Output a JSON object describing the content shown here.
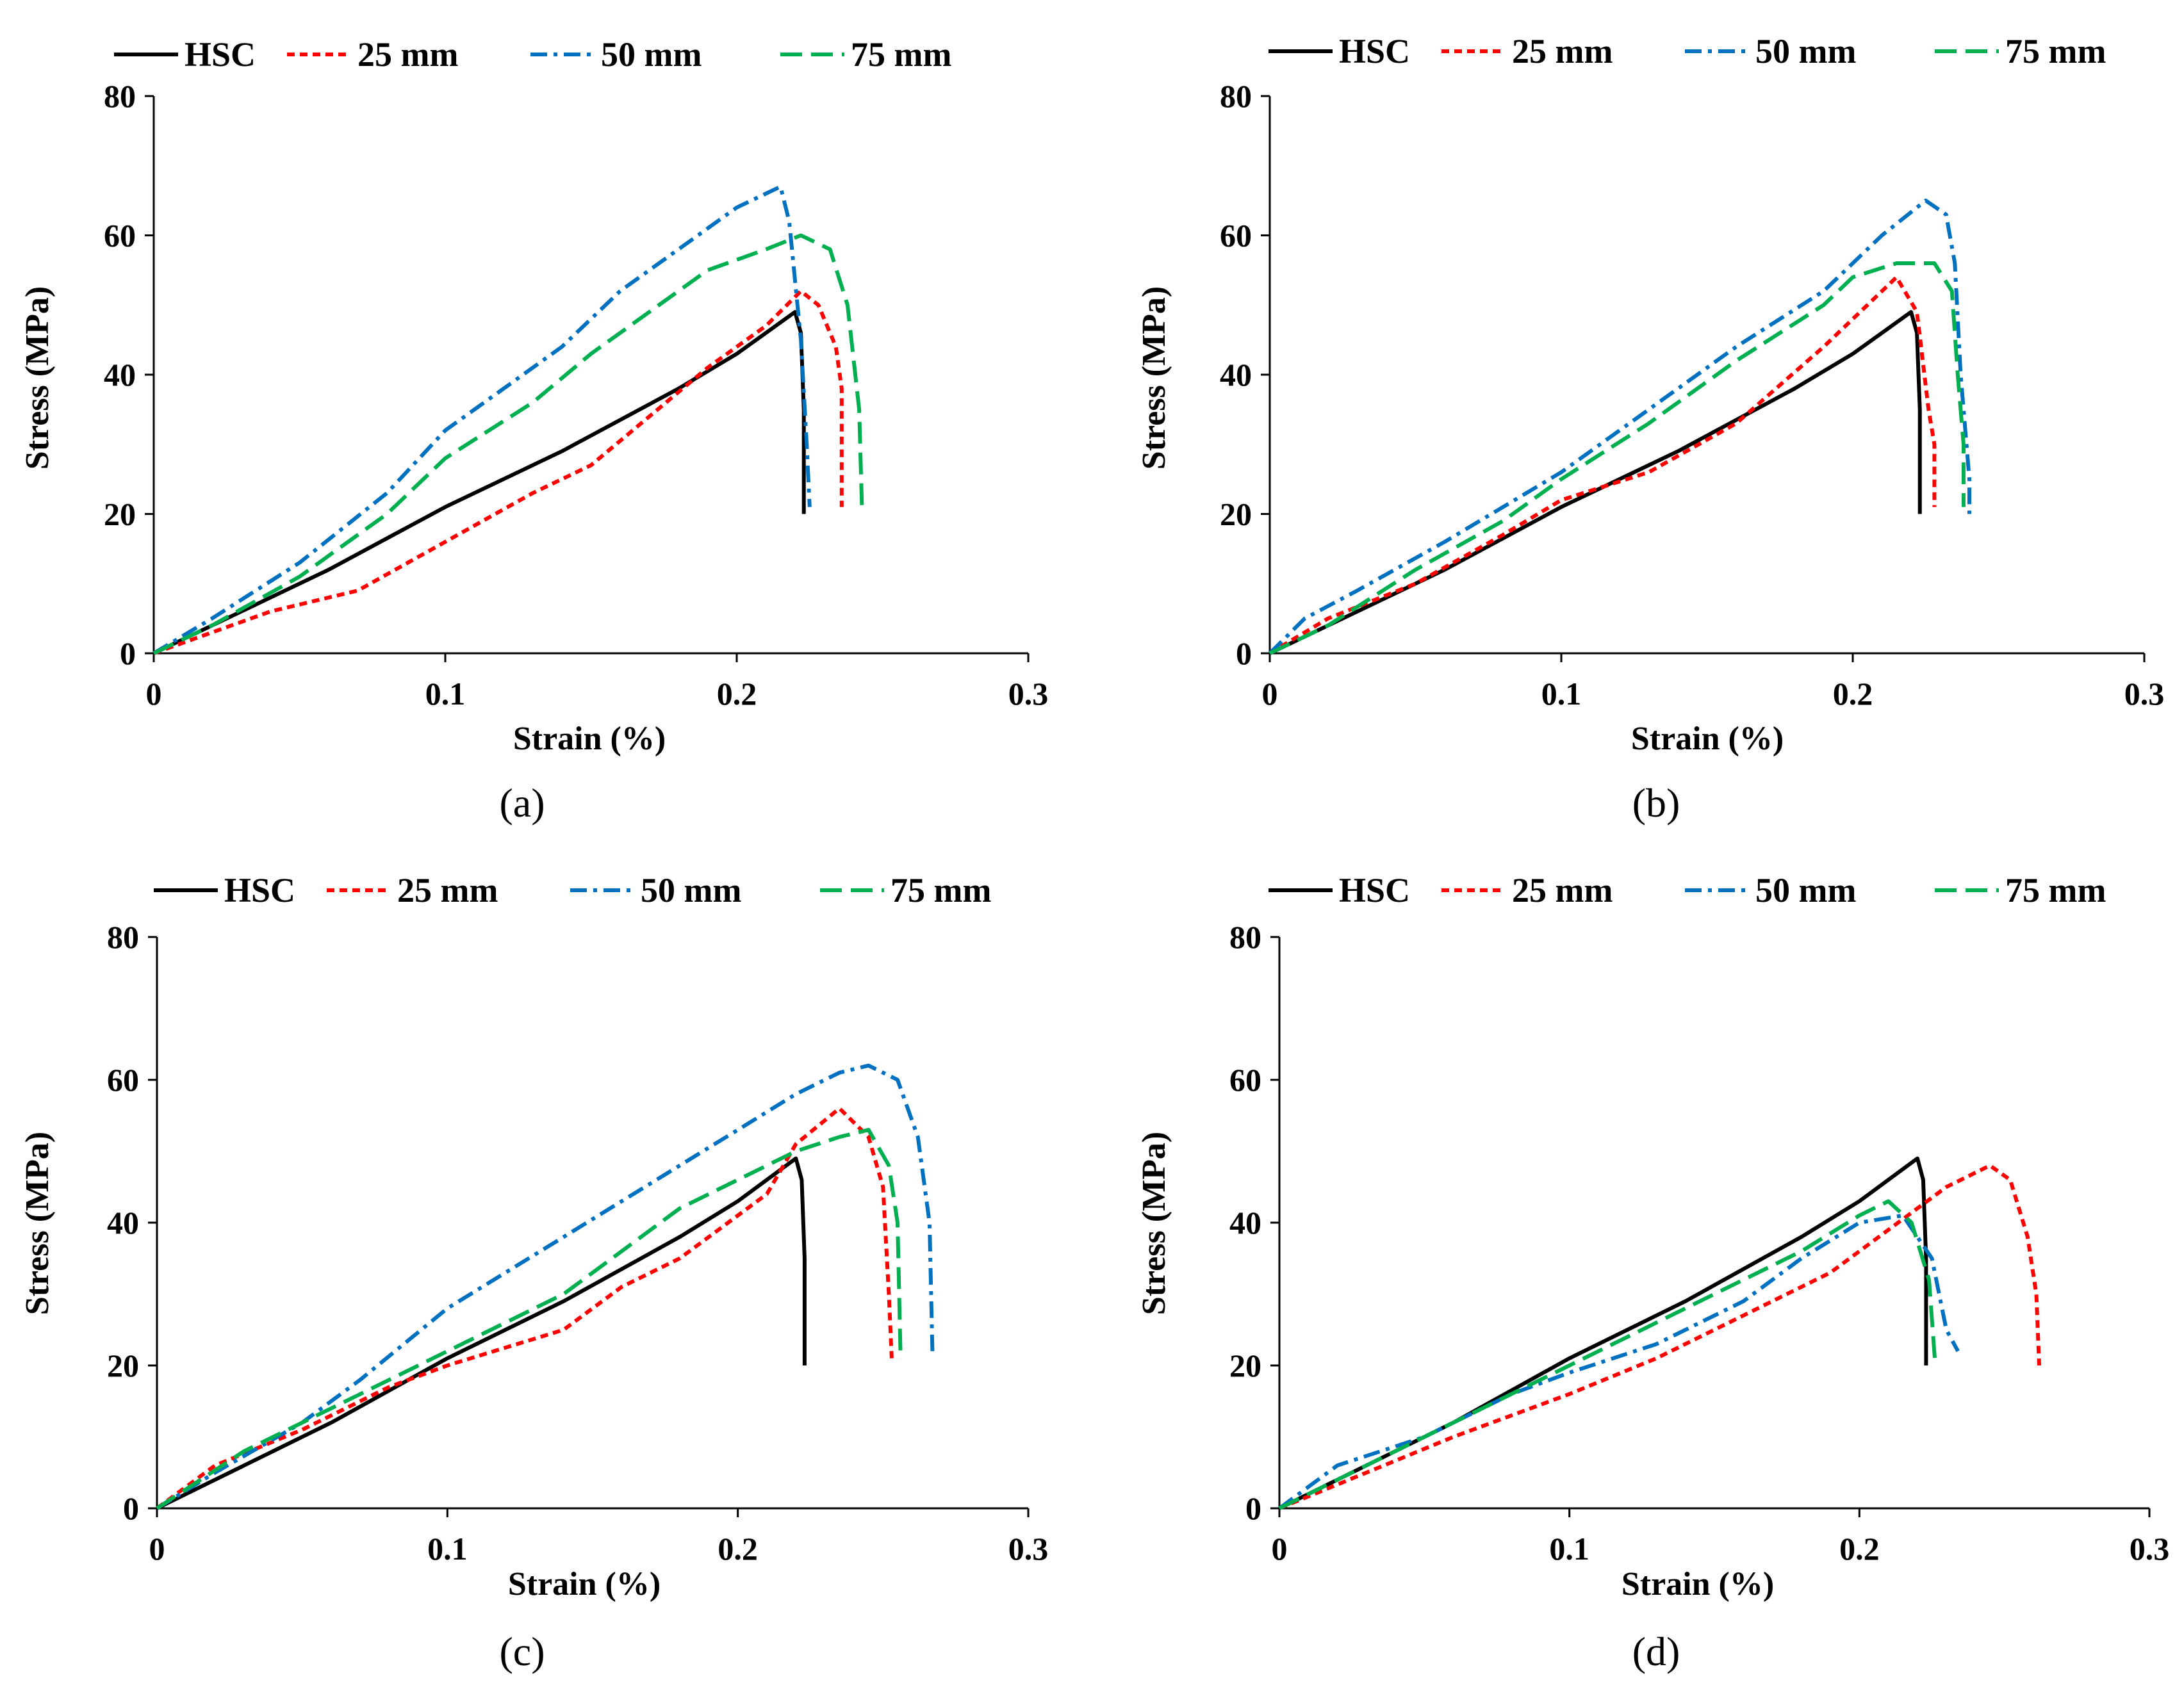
{
  "figure": {
    "yticks": [
      "0",
      "20",
      "40",
      "60",
      "80"
    ],
    "xticks": [
      "0",
      "0.1",
      "0.2",
      "0.3"
    ]
  },
  "series_styles": [
    {
      "name": "HSC",
      "color": "#000000",
      "dash": "solid"
    },
    {
      "name": "25 mm",
      "color": "#ff0000",
      "dash": "dotted"
    },
    {
      "name": "50 mm",
      "color": "#0070c0",
      "dash": "dash-dot"
    },
    {
      "name": "75 mm",
      "color": "#00b050",
      "dash": "dashed"
    }
  ],
  "chart_data": [
    {
      "type": "line",
      "panel_label": "(a)",
      "xlabel": "Strain (%)",
      "ylabel": "Stress (MPa)",
      "xlim": [
        0,
        0.3
      ],
      "ylim": [
        0,
        80
      ],
      "legend": "top",
      "series": [
        {
          "name": "HSC",
          "x": [
            0,
            0.01,
            0.03,
            0.06,
            0.1,
            0.14,
            0.18,
            0.2,
            0.21,
            0.22,
            0.222,
            0.223,
            0.223
          ],
          "y": [
            0,
            2,
            6,
            12,
            21,
            29,
            38,
            43,
            46,
            49,
            46,
            35,
            20
          ]
        },
        {
          "name": "25 mm",
          "x": [
            0,
            0.02,
            0.04,
            0.07,
            0.1,
            0.13,
            0.15,
            0.17,
            0.19,
            0.21,
            0.222,
            0.228,
            0.234,
            0.236,
            0.236
          ],
          "y": [
            0,
            3,
            6,
            9,
            16,
            23,
            27,
            34,
            41,
            47,
            52,
            50,
            44,
            38,
            21
          ]
        },
        {
          "name": "50 mm",
          "x": [
            0,
            0.02,
            0.05,
            0.08,
            0.1,
            0.12,
            0.14,
            0.16,
            0.18,
            0.2,
            0.215,
            0.218,
            0.222,
            0.224,
            0.225
          ],
          "y": [
            0,
            5,
            13,
            23,
            32,
            38,
            44,
            52,
            58,
            64,
            67,
            62,
            45,
            30,
            21
          ]
        },
        {
          "name": "75 mm",
          "x": [
            0,
            0.02,
            0.05,
            0.08,
            0.1,
            0.13,
            0.15,
            0.17,
            0.19,
            0.21,
            0.222,
            0.232,
            0.238,
            0.242,
            0.243
          ],
          "y": [
            0,
            4,
            11,
            20,
            28,
            36,
            43,
            49,
            55,
            58,
            60,
            58,
            50,
            35,
            20
          ]
        }
      ]
    },
    {
      "type": "line",
      "panel_label": "(b)",
      "xlabel": "Strain (%)",
      "ylabel": "Stress (MPa)",
      "xlim": [
        0,
        0.3
      ],
      "ylim": [
        0,
        80
      ],
      "legend": "top",
      "series": [
        {
          "name": "HSC",
          "x": [
            0,
            0.01,
            0.03,
            0.06,
            0.1,
            0.14,
            0.18,
            0.2,
            0.21,
            0.22,
            0.222,
            0.223,
            0.223
          ],
          "y": [
            0,
            2,
            6,
            12,
            21,
            29,
            38,
            43,
            46,
            49,
            46,
            35,
            20
          ]
        },
        {
          "name": "25 mm",
          "x": [
            0,
            0.02,
            0.05,
            0.08,
            0.1,
            0.13,
            0.16,
            0.19,
            0.205,
            0.215,
            0.222,
            0.226,
            0.228,
            0.228
          ],
          "y": [
            0,
            5,
            10,
            17,
            22,
            26,
            33,
            44,
            50,
            54,
            49,
            35,
            30,
            21
          ]
        },
        {
          "name": "50 mm",
          "x": [
            0,
            0.012,
            0.03,
            0.06,
            0.1,
            0.13,
            0.16,
            0.19,
            0.21,
            0.225,
            0.232,
            0.235,
            0.237,
            0.24,
            0.24
          ],
          "y": [
            0,
            5,
            9,
            16,
            26,
            35,
            44,
            52,
            60,
            65,
            63,
            56,
            40,
            25,
            20
          ]
        },
        {
          "name": "75 mm",
          "x": [
            0,
            0.02,
            0.05,
            0.08,
            0.1,
            0.13,
            0.16,
            0.19,
            0.2,
            0.215,
            0.228,
            0.234,
            0.236,
            0.238,
            0.238
          ],
          "y": [
            0,
            4,
            12,
            19,
            25,
            33,
            42,
            50,
            54,
            56,
            56,
            52,
            40,
            30,
            21
          ]
        }
      ]
    },
    {
      "type": "line",
      "panel_label": "(c)",
      "xlabel": "Strain (%)",
      "ylabel": "Stress (MPa)",
      "xlim": [
        0,
        0.3
      ],
      "ylim": [
        0,
        80
      ],
      "legend": "top",
      "series": [
        {
          "name": "HSC",
          "x": [
            0,
            0.01,
            0.03,
            0.06,
            0.1,
            0.14,
            0.18,
            0.2,
            0.21,
            0.22,
            0.222,
            0.223,
            0.223
          ],
          "y": [
            0,
            2,
            6,
            12,
            21,
            29,
            38,
            43,
            46,
            49,
            46,
            35,
            20
          ]
        },
        {
          "name": "25 mm",
          "x": [
            0,
            0.02,
            0.05,
            0.08,
            0.1,
            0.14,
            0.16,
            0.18,
            0.2,
            0.21,
            0.22,
            0.235,
            0.245,
            0.25,
            0.252,
            0.253
          ],
          "y": [
            0,
            6,
            11,
            17,
            20,
            25,
            31,
            35,
            41,
            44,
            51,
            56,
            52,
            45,
            30,
            21
          ]
        },
        {
          "name": "50 mm",
          "x": [
            0,
            0.02,
            0.05,
            0.07,
            0.1,
            0.14,
            0.18,
            0.2,
            0.22,
            0.235,
            0.245,
            0.255,
            0.262,
            0.266,
            0.267
          ],
          "y": [
            0,
            5,
            12,
            18,
            28,
            38,
            48,
            53,
            58,
            61,
            62,
            60,
            52,
            40,
            22
          ]
        },
        {
          "name": "75 mm",
          "x": [
            0,
            0.03,
            0.06,
            0.08,
            0.1,
            0.14,
            0.18,
            0.2,
            0.22,
            0.235,
            0.245,
            0.252,
            0.255,
            0.256
          ],
          "y": [
            0,
            8,
            14,
            18,
            22,
            30,
            42,
            46,
            50,
            52,
            53,
            48,
            40,
            22
          ]
        }
      ]
    },
    {
      "type": "line",
      "panel_label": "(d)",
      "xlabel": "Strain (%)",
      "ylabel": "Stress (MPa)",
      "xlim": [
        0,
        0.3
      ],
      "ylim": [
        0,
        80
      ],
      "legend": "top",
      "series": [
        {
          "name": "HSC",
          "x": [
            0,
            0.01,
            0.03,
            0.06,
            0.1,
            0.14,
            0.18,
            0.2,
            0.21,
            0.22,
            0.222,
            0.223,
            0.223
          ],
          "y": [
            0,
            2,
            6,
            12,
            21,
            29,
            38,
            43,
            46,
            49,
            46,
            35,
            20
          ]
        },
        {
          "name": "25 mm",
          "x": [
            0,
            0.03,
            0.06,
            0.1,
            0.13,
            0.16,
            0.19,
            0.21,
            0.23,
            0.245,
            0.252,
            0.258,
            0.261,
            0.262
          ],
          "y": [
            0,
            5,
            10,
            16,
            21,
            27,
            33,
            39,
            45,
            48,
            46,
            38,
            30,
            20
          ]
        },
        {
          "name": "50 mm",
          "x": [
            0,
            0.02,
            0.05,
            0.08,
            0.1,
            0.13,
            0.16,
            0.18,
            0.2,
            0.215,
            0.225,
            0.23,
            0.234
          ],
          "y": [
            0,
            6,
            10,
            16,
            19,
            23,
            29,
            35,
            40,
            41,
            35,
            25,
            22
          ]
        },
        {
          "name": "75 mm",
          "x": [
            0,
            0.02,
            0.05,
            0.08,
            0.1,
            0.13,
            0.16,
            0.18,
            0.2,
            0.21,
            0.218,
            0.224,
            0.226
          ],
          "y": [
            0,
            4,
            10,
            16,
            20,
            26,
            32,
            36,
            41,
            43,
            40,
            32,
            21
          ]
        }
      ]
    }
  ]
}
